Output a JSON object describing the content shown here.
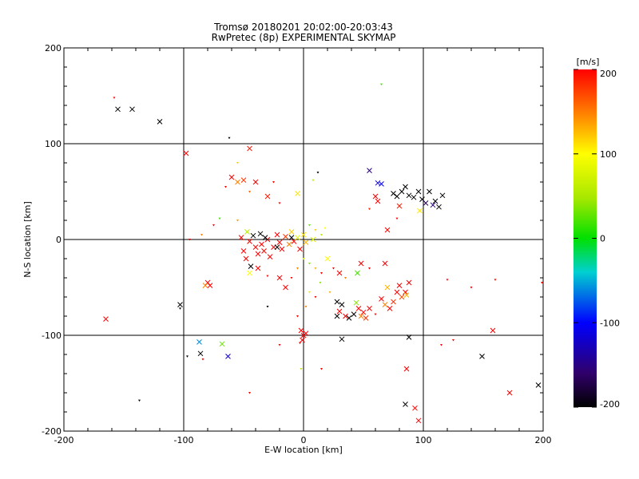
{
  "chart_data": {
    "type": "scatter",
    "title": "Tromsø 20180201 20:02:00-20:03:43",
    "subtitle": "RwPretec (8p) EXPERIMENTAL SKYMAP",
    "xlabel": "E-W location [km]",
    "ylabel": "N-S location [km]",
    "xlim": [
      -200,
      200
    ],
    "ylim": [
      -200,
      200
    ],
    "xticks": [
      "-200",
      "-100",
      "0",
      "100",
      "200"
    ],
    "yticks": [
      "-200",
      "-100",
      "0",
      "100",
      "200"
    ],
    "grid_lines": [
      -100,
      0,
      100
    ],
    "colorbar": {
      "label": "[m/s]",
      "range": [
        -200,
        200
      ],
      "ticks": [
        "200",
        "100",
        "0",
        "-100",
        "-200"
      ]
    },
    "points": [
      {
        "x": -155,
        "y": 136,
        "v": -200,
        "m": "x"
      },
      {
        "x": -143,
        "y": 136,
        "v": -200,
        "m": "x"
      },
      {
        "x": -120,
        "y": 123,
        "v": -200,
        "m": "x"
      },
      {
        "x": -158,
        "y": 148,
        "v": 200,
        "m": "d"
      },
      {
        "x": -98,
        "y": 90,
        "v": 200,
        "m": "x"
      },
      {
        "x": -62,
        "y": 106,
        "v": -200,
        "m": "d"
      },
      {
        "x": -45,
        "y": 95,
        "v": 190,
        "m": "x"
      },
      {
        "x": -60,
        "y": 65,
        "v": 200,
        "m": "x"
      },
      {
        "x": -55,
        "y": 60,
        "v": 150,
        "m": "x"
      },
      {
        "x": -50,
        "y": 62,
        "v": 180,
        "m": "x"
      },
      {
        "x": -40,
        "y": 60,
        "v": 200,
        "m": "x"
      },
      {
        "x": -65,
        "y": 55,
        "v": 200,
        "m": "d"
      },
      {
        "x": -45,
        "y": 50,
        "v": 160,
        "m": "d"
      },
      {
        "x": -55,
        "y": 80,
        "v": 120,
        "m": "d"
      },
      {
        "x": -25,
        "y": 60,
        "v": 200,
        "m": "d"
      },
      {
        "x": -30,
        "y": 45,
        "v": 190,
        "m": "x"
      },
      {
        "x": -20,
        "y": 38,
        "v": 200,
        "m": "d"
      },
      {
        "x": -5,
        "y": 48,
        "v": 110,
        "m": "x"
      },
      {
        "x": 12,
        "y": 70,
        "v": -200,
        "m": "d"
      },
      {
        "x": 8,
        "y": 62,
        "v": 60,
        "m": "d"
      },
      {
        "x": 55,
        "y": 72,
        "v": -150,
        "m": "x"
      },
      {
        "x": 65,
        "y": 162,
        "v": 20,
        "m": "d"
      },
      {
        "x": 62,
        "y": 59,
        "v": -120,
        "m": "x"
      },
      {
        "x": 65,
        "y": 58,
        "v": -100,
        "m": "x"
      },
      {
        "x": 60,
        "y": 45,
        "v": 200,
        "m": "x"
      },
      {
        "x": 62,
        "y": 40,
        "v": 200,
        "m": "x"
      },
      {
        "x": 55,
        "y": 32,
        "v": 190,
        "m": "d"
      },
      {
        "x": 75,
        "y": 48,
        "v": -200,
        "m": "x"
      },
      {
        "x": 78,
        "y": 45,
        "v": -200,
        "m": "x"
      },
      {
        "x": 82,
        "y": 50,
        "v": -200,
        "m": "x"
      },
      {
        "x": 85,
        "y": 55,
        "v": -200,
        "m": "x"
      },
      {
        "x": 88,
        "y": 46,
        "v": -200,
        "m": "x"
      },
      {
        "x": 92,
        "y": 44,
        "v": -200,
        "m": "x"
      },
      {
        "x": 96,
        "y": 50,
        "v": -200,
        "m": "x"
      },
      {
        "x": 99,
        "y": 42,
        "v": -200,
        "m": "x"
      },
      {
        "x": 102,
        "y": 38,
        "v": -170,
        "m": "x"
      },
      {
        "x": 105,
        "y": 50,
        "v": -200,
        "m": "x"
      },
      {
        "x": 108,
        "y": 36,
        "v": -150,
        "m": "x"
      },
      {
        "x": 110,
        "y": 40,
        "v": -200,
        "m": "x"
      },
      {
        "x": 113,
        "y": 34,
        "v": -200,
        "m": "x"
      },
      {
        "x": 116,
        "y": 46,
        "v": -200,
        "m": "x"
      },
      {
        "x": 97,
        "y": 30,
        "v": 110,
        "m": "x"
      },
      {
        "x": 80,
        "y": 35,
        "v": 190,
        "m": "x"
      },
      {
        "x": 70,
        "y": 10,
        "v": 200,
        "m": "x"
      },
      {
        "x": 78,
        "y": 22,
        "v": 200,
        "m": "d"
      },
      {
        "x": -70,
        "y": 22,
        "v": 20,
        "m": "d"
      },
      {
        "x": -75,
        "y": 15,
        "v": 200,
        "m": "d"
      },
      {
        "x": -85,
        "y": 5,
        "v": 150,
        "m": "d"
      },
      {
        "x": -95,
        "y": 0,
        "v": 200,
        "m": "d"
      },
      {
        "x": -55,
        "y": 20,
        "v": 140,
        "m": "d"
      },
      {
        "x": -47,
        "y": 8,
        "v": 60,
        "m": "x"
      },
      {
        "x": -45,
        "y": -2,
        "v": 200,
        "m": "x"
      },
      {
        "x": -40,
        "y": -8,
        "v": 200,
        "m": "x"
      },
      {
        "x": -38,
        "y": -15,
        "v": 200,
        "m": "x"
      },
      {
        "x": -35,
        "y": -5,
        "v": 200,
        "m": "x"
      },
      {
        "x": -33,
        "y": -12,
        "v": 200,
        "m": "x"
      },
      {
        "x": -30,
        "y": 0,
        "v": 200,
        "m": "x"
      },
      {
        "x": -28,
        "y": -18,
        "v": 200,
        "m": "x"
      },
      {
        "x": -25,
        "y": -8,
        "v": 200,
        "m": "x"
      },
      {
        "x": -22,
        "y": 5,
        "v": 200,
        "m": "x"
      },
      {
        "x": -20,
        "y": -3,
        "v": 200,
        "m": "x"
      },
      {
        "x": -18,
        "y": -10,
        "v": 200,
        "m": "x"
      },
      {
        "x": -15,
        "y": 3,
        "v": 180,
        "m": "x"
      },
      {
        "x": -12,
        "y": -5,
        "v": 150,
        "m": "x"
      },
      {
        "x": -10,
        "y": 8,
        "v": 120,
        "m": "x"
      },
      {
        "x": -8,
        "y": -2,
        "v": 200,
        "m": "x"
      },
      {
        "x": -5,
        "y": 2,
        "v": 90,
        "m": "x"
      },
      {
        "x": -3,
        "y": -10,
        "v": 200,
        "m": "x"
      },
      {
        "x": 0,
        "y": 5,
        "v": 110,
        "m": "x"
      },
      {
        "x": 2,
        "y": -3,
        "v": 130,
        "m": "x"
      },
      {
        "x": 5,
        "y": 15,
        "v": 30,
        "m": "d"
      },
      {
        "x": 8,
        "y": 0,
        "v": 80,
        "m": "x"
      },
      {
        "x": 10,
        "y": 10,
        "v": 120,
        "m": "d"
      },
      {
        "x": 15,
        "y": 5,
        "v": 60,
        "m": "d"
      },
      {
        "x": 18,
        "y": 12,
        "v": 100,
        "m": "d"
      },
      {
        "x": -42,
        "y": 4,
        "v": -200,
        "m": "x"
      },
      {
        "x": -36,
        "y": 6,
        "v": -200,
        "m": "x"
      },
      {
        "x": -32,
        "y": 2,
        "v": -200,
        "m": "x"
      },
      {
        "x": -22,
        "y": -8,
        "v": -200,
        "m": "x"
      },
      {
        "x": -10,
        "y": 2,
        "v": -200,
        "m": "x"
      },
      {
        "x": -44,
        "y": -28,
        "v": -200,
        "m": "x"
      },
      {
        "x": -48,
        "y": -20,
        "v": 200,
        "m": "x"
      },
      {
        "x": -50,
        "y": -12,
        "v": 200,
        "m": "x"
      },
      {
        "x": -52,
        "y": 2,
        "v": 200,
        "m": "x"
      },
      {
        "x": -45,
        "y": -35,
        "v": 100,
        "m": "x"
      },
      {
        "x": -38,
        "y": -30,
        "v": 200,
        "m": "x"
      },
      {
        "x": -30,
        "y": -38,
        "v": 200,
        "m": "d"
      },
      {
        "x": -20,
        "y": -40,
        "v": 200,
        "m": "x"
      },
      {
        "x": -15,
        "y": -50,
        "v": 200,
        "m": "x"
      },
      {
        "x": -10,
        "y": -40,
        "v": 200,
        "m": "d"
      },
      {
        "x": -5,
        "y": -30,
        "v": 150,
        "m": "d"
      },
      {
        "x": 0,
        "y": -20,
        "v": 80,
        "m": "d"
      },
      {
        "x": 5,
        "y": -25,
        "v": 40,
        "m": "d"
      },
      {
        "x": 10,
        "y": -30,
        "v": 130,
        "m": "d"
      },
      {
        "x": 15,
        "y": -35,
        "v": 200,
        "m": "d"
      },
      {
        "x": 20,
        "y": -20,
        "v": 100,
        "m": "x"
      },
      {
        "x": 25,
        "y": -30,
        "v": 200,
        "m": "d"
      },
      {
        "x": 30,
        "y": -35,
        "v": 200,
        "m": "x"
      },
      {
        "x": 35,
        "y": -40,
        "v": 150,
        "m": "d"
      },
      {
        "x": 45,
        "y": -35,
        "v": 20,
        "m": "x"
      },
      {
        "x": 48,
        "y": -25,
        "v": 200,
        "m": "x"
      },
      {
        "x": 55,
        "y": -30,
        "v": 200,
        "m": "d"
      },
      {
        "x": 68,
        "y": -25,
        "v": 200,
        "m": "x"
      },
      {
        "x": 22,
        "y": -55,
        "v": 130,
        "m": "d"
      },
      {
        "x": 28,
        "y": -65,
        "v": -200,
        "m": "x"
      },
      {
        "x": 32,
        "y": -68,
        "v": -200,
        "m": "x"
      },
      {
        "x": 30,
        "y": -75,
        "v": 200,
        "m": "x"
      },
      {
        "x": 35,
        "y": -80,
        "v": 200,
        "m": "x"
      },
      {
        "x": 28,
        "y": -80,
        "v": -200,
        "m": "x"
      },
      {
        "x": 38,
        "y": -82,
        "v": -200,
        "m": "x"
      },
      {
        "x": 42,
        "y": -78,
        "v": -200,
        "m": "x"
      },
      {
        "x": 44,
        "y": -66,
        "v": 40,
        "m": "x"
      },
      {
        "x": 46,
        "y": -72,
        "v": 200,
        "m": "x"
      },
      {
        "x": 48,
        "y": -80,
        "v": 150,
        "m": "x"
      },
      {
        "x": 50,
        "y": -76,
        "v": 200,
        "m": "x"
      },
      {
        "x": 52,
        "y": -82,
        "v": 180,
        "m": "x"
      },
      {
        "x": 55,
        "y": -72,
        "v": 200,
        "m": "x"
      },
      {
        "x": 60,
        "y": -78,
        "v": 200,
        "m": "d"
      },
      {
        "x": 65,
        "y": -62,
        "v": 200,
        "m": "x"
      },
      {
        "x": 68,
        "y": -68,
        "v": 150,
        "m": "x"
      },
      {
        "x": 70,
        "y": -50,
        "v": 130,
        "m": "x"
      },
      {
        "x": 72,
        "y": -72,
        "v": 200,
        "m": "x"
      },
      {
        "x": 75,
        "y": -65,
        "v": 180,
        "m": "x"
      },
      {
        "x": 78,
        "y": -55,
        "v": 200,
        "m": "x"
      },
      {
        "x": 80,
        "y": -48,
        "v": 200,
        "m": "x"
      },
      {
        "x": 82,
        "y": -60,
        "v": 170,
        "m": "x"
      },
      {
        "x": 85,
        "y": -55,
        "v": 200,
        "m": "x"
      },
      {
        "x": 88,
        "y": -45,
        "v": 200,
        "m": "x"
      },
      {
        "x": 86,
        "y": -58,
        "v": 130,
        "m": "x"
      },
      {
        "x": 14,
        "y": -45,
        "v": 40,
        "m": "d"
      },
      {
        "x": 5,
        "y": -55,
        "v": 110,
        "m": "d"
      },
      {
        "x": 10,
        "y": -60,
        "v": 200,
        "m": "d"
      },
      {
        "x": 2,
        "y": -70,
        "v": 150,
        "m": "d"
      },
      {
        "x": -5,
        "y": -80,
        "v": 200,
        "m": "d"
      },
      {
        "x": -2,
        "y": -95,
        "v": 200,
        "m": "x"
      },
      {
        "x": 0,
        "y": -100,
        "v": 200,
        "m": "x"
      },
      {
        "x": -1,
        "y": -105,
        "v": 200,
        "m": "x"
      },
      {
        "x": 2,
        "y": -98,
        "v": 200,
        "m": "x"
      },
      {
        "x": -3,
        "y": -108,
        "v": 200,
        "m": "d"
      },
      {
        "x": -20,
        "y": -110,
        "v": 200,
        "m": "d"
      },
      {
        "x": -2,
        "y": -135,
        "v": 60,
        "m": "d"
      },
      {
        "x": 15,
        "y": -135,
        "v": 200,
        "m": "d"
      },
      {
        "x": -30,
        "y": -70,
        "v": -200,
        "m": "d"
      },
      {
        "x": -80,
        "y": -45,
        "v": 200,
        "m": "x"
      },
      {
        "x": -78,
        "y": -48,
        "v": 200,
        "m": "x"
      },
      {
        "x": -82,
        "y": -48,
        "v": 150,
        "m": "x"
      },
      {
        "x": -103,
        "y": -68,
        "v": -200,
        "m": "x"
      },
      {
        "x": -103,
        "y": -72,
        "v": -200,
        "m": "d"
      },
      {
        "x": -165,
        "y": -83,
        "v": 200,
        "m": "x"
      },
      {
        "x": -87,
        "y": -107,
        "v": -60,
        "m": "x"
      },
      {
        "x": -68,
        "y": -109,
        "v": 30,
        "m": "x"
      },
      {
        "x": -86,
        "y": -119,
        "v": -200,
        "m": "x"
      },
      {
        "x": -84,
        "y": -125,
        "v": 200,
        "m": "d"
      },
      {
        "x": -63,
        "y": -122,
        "v": -120,
        "m": "x"
      },
      {
        "x": -97,
        "y": -122,
        "v": -200,
        "m": "d"
      },
      {
        "x": -45,
        "y": -160,
        "v": 200,
        "m": "d"
      },
      {
        "x": -137,
        "y": -168,
        "v": -200,
        "m": "d"
      },
      {
        "x": 32,
        "y": -104,
        "v": -200,
        "m": "x"
      },
      {
        "x": 88,
        "y": -102,
        "v": -200,
        "m": "x"
      },
      {
        "x": 86,
        "y": -135,
        "v": 200,
        "m": "x"
      },
      {
        "x": 85,
        "y": -172,
        "v": -200,
        "m": "x"
      },
      {
        "x": 93,
        "y": -176,
        "v": 200,
        "m": "x"
      },
      {
        "x": 96,
        "y": -189,
        "v": 200,
        "m": "x"
      },
      {
        "x": 115,
        "y": -110,
        "v": 200,
        "m": "d"
      },
      {
        "x": 125,
        "y": -105,
        "v": 200,
        "m": "d"
      },
      {
        "x": 120,
        "y": -42,
        "v": 200,
        "m": "d"
      },
      {
        "x": 140,
        "y": -50,
        "v": 200,
        "m": "d"
      },
      {
        "x": 160,
        "y": -42,
        "v": 200,
        "m": "d"
      },
      {
        "x": 149,
        "y": -122,
        "v": -200,
        "m": "x"
      },
      {
        "x": 158,
        "y": -95,
        "v": 200,
        "m": "x"
      },
      {
        "x": 172,
        "y": -160,
        "v": 200,
        "m": "x"
      },
      {
        "x": 196,
        "y": -152,
        "v": -200,
        "m": "x"
      },
      {
        "x": 199,
        "y": -45,
        "v": 200,
        "m": "d"
      }
    ]
  }
}
